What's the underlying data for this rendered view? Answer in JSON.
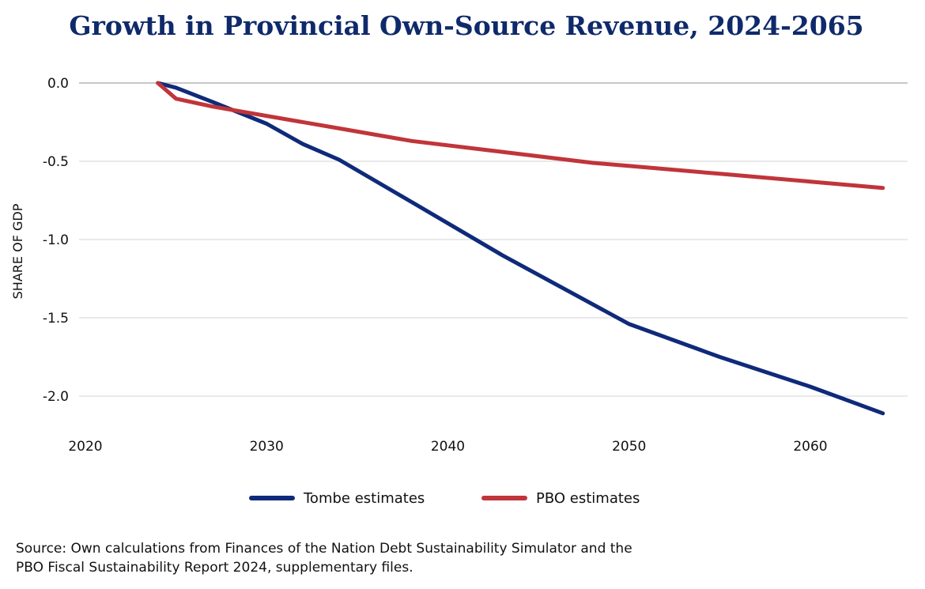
{
  "chart_data": {
    "type": "line",
    "title": "Growth in Provincial Own-Source Revenue, 2024-2065",
    "xlabel": "",
    "ylabel": "SHARE OF GDP",
    "xlim": [
      2019,
      2066
    ],
    "ylim": [
      -2.2,
      0.05
    ],
    "xticks": [
      2020,
      2030,
      2040,
      2050,
      2060
    ],
    "xtick_labels": [
      "2020",
      "2030",
      "2040",
      "2050",
      "2060"
    ],
    "yticks": [
      0,
      -0.5,
      -1,
      -1.5,
      -2
    ],
    "ytick_labels": [
      "0.0",
      "-0.5",
      "-1.0",
      "-1.5",
      "-2.0"
    ],
    "grid": "horizontal",
    "legend_position": "bottom",
    "series": [
      {
        "name": "Tombe estimates",
        "color": "#0f2a7a",
        "x": [
          2024,
          2025,
          2027,
          2030,
          2032,
          2034,
          2038,
          2043,
          2050,
          2055,
          2060,
          2064
        ],
        "y": [
          0,
          -0.03,
          -0.12,
          -0.26,
          -0.39,
          -0.49,
          -0.76,
          -1.1,
          -1.54,
          -1.75,
          -1.94,
          -2.11
        ]
      },
      {
        "name": "PBO estimates",
        "color": "#c0353a",
        "x": [
          2024,
          2025,
          2027,
          2030,
          2034,
          2038,
          2043,
          2048,
          2050,
          2055,
          2060,
          2064
        ],
        "y": [
          0,
          -0.1,
          -0.15,
          -0.21,
          -0.29,
          -0.37,
          -0.44,
          -0.51,
          -0.53,
          -0.58,
          -0.63,
          -0.67
        ]
      }
    ]
  },
  "source": {
    "line1": "Source: Own calculations from Finances of the Nation Debt Sustainability Simulator and the",
    "line2": "PBO Fiscal Sustainability Report 2024, supplementary files."
  }
}
